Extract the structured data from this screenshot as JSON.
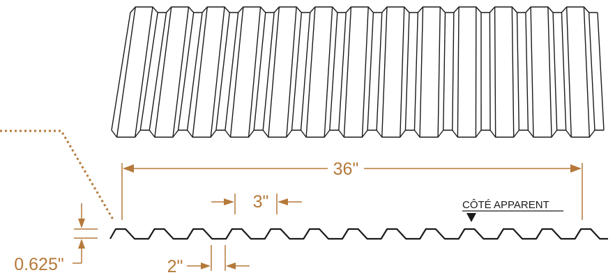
{
  "colors": {
    "dimension": "#b5793a",
    "outline": "#1a1a1a",
    "background": "#ffffff"
  },
  "dimensions": {
    "overall_width": "36\"",
    "rib_spacing": "3\"",
    "rib_top_width": "2\"",
    "rib_height": "0.625\""
  },
  "labels": {
    "visible_side": "CÔTÉ APPARENT"
  }
}
